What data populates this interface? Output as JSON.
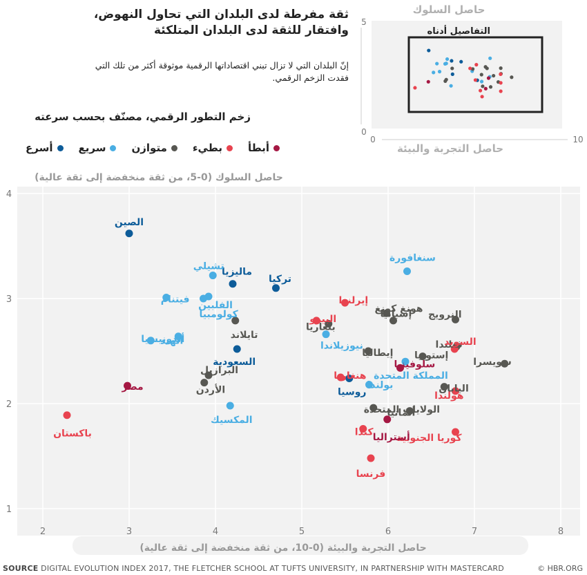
{
  "title_line1": "ثقة مفرطة لدى البلدان التي تحاول النهوض،",
  "title_line2": "وافتقار للثقة لدى البلدان المتلكئة",
  "subtitle_line1": "إنّ البلدان التي لا تزال تبني اقتصاداتها الرقمية موثوقة أكثر من تلك التي",
  "subtitle_line2": "فقدت الزخم الرقمي.",
  "legend": {
    "title": "زخم التطور الرقمي، مصنّف بحسب سرعته",
    "items": [
      {
        "label": "أسرع",
        "color": "#0d5c99"
      },
      {
        "label": "سريع",
        "color": "#4aaee3"
      },
      {
        "label": "متوازن",
        "color": "#575752"
      },
      {
        "label": "بطيء",
        "color": "#e8434f"
      },
      {
        "label": "أبطأ",
        "color": "#a51843"
      }
    ]
  },
  "inset": {
    "y_title": "حاصل السلوك",
    "x_title": "حاصل التجربة والبيئة",
    "box_label": "التفاصيل أدناه",
    "y_ticks": [
      "5",
      "0"
    ],
    "x_ticks": [
      "0",
      "10"
    ]
  },
  "source_label": "SOURCE",
  "source_text": "DIGITAL EVOLUTION INDEX 2017, THE FLETCHER SCHOOL AT TUFTS UNIVERSITY, IN PARTNERSHIP WITH MASTERCARD",
  "credit": "© HBR.ORG",
  "chart_data": {
    "type": "scatter",
    "ylabel": "حاصل السلوك (0-5، من ثقة منخفضة إلى ثقة عالية)",
    "xlabel": "حاصل التجربة والبيئة (0-10، من ثقة منخفضة إلى ثقة عالية)",
    "xlim": [
      1.8,
      8.2
    ],
    "ylim": [
      0.9,
      4.1
    ],
    "x_ticks": [
      "2",
      "3",
      "4",
      "5",
      "6",
      "7",
      "8"
    ],
    "y_ticks": [
      "4",
      "3",
      "2",
      "1"
    ],
    "categories": {
      "fastest": "#0d5c99",
      "fast": "#4aaee3",
      "balanced": "#575752",
      "slow": "#e8434f",
      "slowest": "#a51843"
    },
    "points": [
      {
        "name": "الصين",
        "x": 3.0,
        "y": 3.62,
        "cat": "fastest"
      },
      {
        "name": "ماليزيا",
        "x": 4.2,
        "y": 3.14,
        "cat": "fastest"
      },
      {
        "name": "تركيا",
        "x": 4.7,
        "y": 3.1,
        "cat": "fastest"
      },
      {
        "name": "السعودية",
        "x": 4.25,
        "y": 2.52,
        "cat": "fastest"
      },
      {
        "name": "روسيا",
        "x": 5.55,
        "y": 2.24,
        "cat": "fastest"
      },
      {
        "name": "تشيلي",
        "x": 3.97,
        "y": 3.22,
        "cat": "fast"
      },
      {
        "name": "فيتنام",
        "x": 3.43,
        "y": 3.01,
        "cat": "fast"
      },
      {
        "name": "الفلبين",
        "x": 3.92,
        "y": 3.02,
        "cat": "fast"
      },
      {
        "name": "كولومبيا",
        "x": 3.86,
        "y": 3.0,
        "cat": "fast"
      },
      {
        "name": "أندونيسيا",
        "x": 3.25,
        "y": 2.6,
        "cat": "fast"
      },
      {
        "name": "الهند",
        "x": 3.57,
        "y": 2.64,
        "cat": "fast"
      },
      {
        "name": "المكسيك",
        "x": 4.17,
        "y": 1.98,
        "cat": "fast"
      },
      {
        "name": "سنغافورة",
        "x": 6.22,
        "y": 3.26,
        "cat": "fast"
      },
      {
        "name": "نيوزيلاندا",
        "x": 5.28,
        "y": 2.66,
        "cat": "fast"
      },
      {
        "name": "المملكة المتحدة",
        "x": 6.2,
        "y": 2.4,
        "cat": "fast"
      },
      {
        "name": "بولندا",
        "x": 5.78,
        "y": 2.18,
        "cat": "fast"
      },
      {
        "name": "تايلاند",
        "x": 4.23,
        "y": 2.79,
        "cat": "balanced"
      },
      {
        "name": "البرازيل",
        "x": 3.92,
        "y": 2.27,
        "cat": "balanced"
      },
      {
        "name": "الأردن",
        "x": 3.87,
        "y": 2.2,
        "cat": "balanced"
      },
      {
        "name": "إسبانيا",
        "x": 5.98,
        "y": 2.86,
        "cat": "balanced"
      },
      {
        "name": "هونغ كونغ",
        "x": 6.06,
        "y": 2.79,
        "cat": "balanced"
      },
      {
        "name": "بلغاريا",
        "x": 5.31,
        "y": 2.76,
        "cat": "balanced"
      },
      {
        "name": "إيطاليا",
        "x": 5.77,
        "y": 2.5,
        "cat": "balanced"
      },
      {
        "name": "إستونيا",
        "x": 6.4,
        "y": 2.45,
        "cat": "balanced"
      },
      {
        "name": "النرويج",
        "x": 6.78,
        "y": 2.8,
        "cat": "balanced"
      },
      {
        "name": "فنلندا",
        "x": 6.79,
        "y": 2.54,
        "cat": "balanced"
      },
      {
        "name": "سويسرا",
        "x": 7.35,
        "y": 2.38,
        "cat": "balanced"
      },
      {
        "name": "اليابان",
        "x": 6.65,
        "y": 2.16,
        "cat": "balanced"
      },
      {
        "name": "الولايات المتحدة",
        "x": 5.83,
        "y": 1.96,
        "cat": "balanced"
      },
      {
        "name": "ألمانيا",
        "x": 6.25,
        "y": 1.93,
        "cat": "balanced"
      },
      {
        "name": "إيرلندا",
        "x": 5.5,
        "y": 2.96,
        "cat": "slow"
      },
      {
        "name": "البيرو",
        "x": 5.17,
        "y": 2.79,
        "cat": "slow"
      },
      {
        "name": "السويد",
        "x": 6.77,
        "y": 2.52,
        "cat": "slow"
      },
      {
        "name": "هنغاريا",
        "x": 5.45,
        "y": 2.25,
        "cat": "slow"
      },
      {
        "name": "هولندا",
        "x": 6.78,
        "y": 2.12,
        "cat": "slow"
      },
      {
        "name": "باكستان",
        "x": 2.28,
        "y": 1.89,
        "cat": "slow"
      },
      {
        "name": "كندا",
        "x": 5.71,
        "y": 1.76,
        "cat": "slow"
      },
      {
        "name": "كوريا الجنوبية",
        "x": 6.78,
        "y": 1.73,
        "cat": "slow"
      },
      {
        "name": "فرنسا",
        "x": 5.8,
        "y": 1.48,
        "cat": "slow"
      },
      {
        "name": "مصر",
        "x": 2.98,
        "y": 2.17,
        "cat": "slowest"
      },
      {
        "name": "سلوفينيا",
        "x": 6.14,
        "y": 2.34,
        "cat": "slowest"
      },
      {
        "name": "أستراليا",
        "x": 5.99,
        "y": 1.85,
        "cat": "slowest"
      }
    ]
  }
}
